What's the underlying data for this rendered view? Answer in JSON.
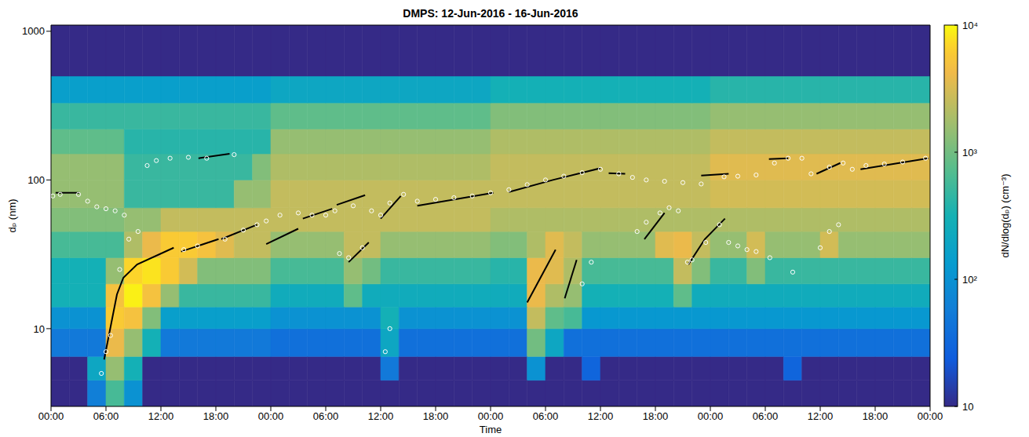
{
  "chart_data": {
    "type": "heatmap",
    "title": "DMPS: 12-Jun-2016 - 16-Jun-2016",
    "x_label": "Time",
    "y_label": "dₚ (nm)",
    "log": "y",
    "xlim": [
      0,
      96
    ],
    "ylim": [
      3,
      1100
    ],
    "xticks": [
      {
        "value": 0,
        "label": "00:00"
      },
      {
        "value": 6,
        "label": "06:00"
      },
      {
        "value": 12,
        "label": "12:00"
      },
      {
        "value": 18,
        "label": "18:00"
      },
      {
        "value": 24,
        "label": "00:00"
      },
      {
        "value": 30,
        "label": "06:00"
      },
      {
        "value": 36,
        "label": "12:00"
      },
      {
        "value": 42,
        "label": "18:00"
      },
      {
        "value": 48,
        "label": "00:00"
      },
      {
        "value": 54,
        "label": "06:00"
      },
      {
        "value": 60,
        "label": "12:00"
      },
      {
        "value": 66,
        "label": "18:00"
      },
      {
        "value": 72,
        "label": "00:00"
      },
      {
        "value": 78,
        "label": "06:00"
      },
      {
        "value": 84,
        "label": "12:00"
      },
      {
        "value": 90,
        "label": "18:00"
      },
      {
        "value": 96,
        "label": "00:00"
      }
    ],
    "yticks": [
      10,
      100,
      1000
    ],
    "x_edges": [
      0,
      2,
      4,
      6,
      8,
      10,
      12,
      14,
      16,
      18,
      20,
      22,
      24,
      26,
      28,
      30,
      32,
      34,
      36,
      38,
      40,
      42,
      44,
      46,
      48,
      50,
      52,
      54,
      56,
      58,
      60,
      62,
      64,
      66,
      68,
      70,
      72,
      74,
      76,
      78,
      80,
      82,
      84,
      86,
      88,
      90,
      92,
      94,
      96
    ],
    "y_edges": [
      3,
      4.5,
      6.5,
      10,
      14,
      20,
      30,
      45,
      65,
      100,
      150,
      220,
      330,
      500,
      1100
    ],
    "cells": [
      [
        10,
        10,
        60,
        600,
        100,
        10,
        10,
        10,
        10,
        10,
        10,
        10,
        10,
        10,
        10,
        10,
        10,
        10,
        10,
        10,
        10,
        10,
        10,
        10,
        10,
        10,
        10,
        10,
        10,
        10,
        10,
        10,
        10,
        10,
        10,
        10,
        10,
        10,
        10,
        10,
        10,
        10,
        10,
        10,
        10,
        10,
        10,
        10
      ],
      [
        10,
        10,
        200,
        1500,
        300,
        10,
        10,
        10,
        10,
        10,
        10,
        10,
        10,
        10,
        10,
        10,
        10,
        10,
        50,
        10,
        10,
        10,
        10,
        10,
        10,
        10,
        100,
        10,
        10,
        30,
        10,
        10,
        10,
        10,
        10,
        10,
        10,
        10,
        10,
        10,
        30,
        10,
        10,
        10,
        10,
        10,
        10,
        10
      ],
      [
        50,
        50,
        50,
        4000,
        1500,
        300,
        50,
        50,
        50,
        50,
        50,
        50,
        40,
        40,
        40,
        40,
        40,
        40,
        200,
        40,
        40,
        40,
        40,
        40,
        40,
        40,
        1000,
        200,
        40,
        40,
        40,
        40,
        40,
        40,
        40,
        40,
        40,
        40,
        40,
        40,
        40,
        40,
        40,
        40,
        40,
        40,
        40,
        40
      ],
      [
        100,
        100,
        100,
        6000,
        5000,
        1200,
        150,
        150,
        150,
        150,
        150,
        150,
        100,
        100,
        100,
        100,
        100,
        100,
        300,
        100,
        100,
        100,
        100,
        100,
        100,
        100,
        2500,
        800,
        600,
        120,
        120,
        120,
        120,
        120,
        120,
        120,
        120,
        120,
        120,
        120,
        120,
        120,
        120,
        120,
        120,
        120,
        120,
        120
      ],
      [
        300,
        300,
        300,
        5000,
        9000,
        5000,
        1500,
        500,
        500,
        500,
        500,
        500,
        250,
        250,
        250,
        250,
        800,
        250,
        250,
        250,
        250,
        250,
        250,
        250,
        250,
        250,
        4000,
        2000,
        1500,
        300,
        300,
        300,
        300,
        300,
        800,
        250,
        250,
        250,
        250,
        250,
        250,
        250,
        250,
        250,
        250,
        250,
        250,
        250
      ],
      [
        300,
        300,
        300,
        1500,
        7000,
        8000,
        6000,
        3000,
        1200,
        1200,
        1200,
        1200,
        600,
        600,
        600,
        600,
        1500,
        1000,
        500,
        500,
        500,
        500,
        500,
        500,
        400,
        400,
        4000,
        3500,
        2000,
        600,
        600,
        600,
        600,
        600,
        2500,
        1200,
        500,
        500,
        1200,
        500,
        500,
        500,
        500,
        500,
        500,
        500,
        500,
        500
      ],
      [
        600,
        600,
        600,
        600,
        2000,
        4000,
        6000,
        6000,
        5000,
        3500,
        2500,
        2500,
        1500,
        1500,
        1500,
        1500,
        2500,
        2500,
        1500,
        1500,
        1500,
        1500,
        1500,
        1500,
        1200,
        1200,
        2000,
        3500,
        2500,
        1500,
        1500,
        1500,
        1500,
        3500,
        4000,
        2500,
        1500,
        1500,
        3000,
        1500,
        1500,
        1500,
        3000,
        1500,
        1500,
        1500,
        1500,
        1500
      ],
      [
        1200,
        1200,
        1200,
        1200,
        1500,
        1500,
        2500,
        2500,
        2500,
        2500,
        2500,
        2500,
        2500,
        2500,
        2500,
        2500,
        2500,
        2500,
        2500,
        2500,
        2500,
        2500,
        2500,
        2500,
        2000,
        2000,
        2000,
        2000,
        2000,
        2000,
        2000,
        2000,
        2000,
        2000,
        2000,
        2000,
        2000,
        2000,
        2000,
        2000,
        2000,
        2000,
        2000,
        2000,
        2000,
        2000,
        2000,
        2000
      ],
      [
        1500,
        1500,
        1500,
        1500,
        500,
        500,
        500,
        500,
        500,
        500,
        1500,
        1500,
        2500,
        2500,
        2500,
        2500,
        2500,
        2500,
        2500,
        2500,
        2500,
        2500,
        2500,
        2500,
        2500,
        2500,
        2500,
        2500,
        2500,
        2500,
        2500,
        2500,
        2500,
        2500,
        2500,
        2500,
        3000,
        3000,
        3000,
        3000,
        3000,
        3000,
        3000,
        3000,
        3000,
        3000,
        3000,
        3000
      ],
      [
        1500,
        1500,
        1500,
        1500,
        500,
        500,
        500,
        500,
        500,
        500,
        500,
        1200,
        2000,
        2000,
        2000,
        2000,
        2000,
        2000,
        2000,
        2000,
        2000,
        2000,
        2000,
        2000,
        2500,
        2500,
        2500,
        2500,
        2500,
        2500,
        2500,
        2500,
        2500,
        2500,
        2500,
        2500,
        3500,
        3500,
        3500,
        3500,
        3500,
        3500,
        3500,
        3500,
        3500,
        3500,
        3500,
        3500
      ],
      [
        800,
        800,
        800,
        800,
        400,
        400,
        400,
        400,
        400,
        400,
        400,
        400,
        1500,
        1500,
        1500,
        1500,
        1500,
        1500,
        1500,
        1500,
        1500,
        1500,
        1500,
        1500,
        2000,
        2000,
        2000,
        2000,
        2000,
        2000,
        2000,
        2000,
        2000,
        2000,
        2000,
        2000,
        2500,
        2500,
        2500,
        2500,
        2500,
        2500,
        2500,
        2500,
        2500,
        2500,
        2500,
        2500
      ],
      [
        500,
        500,
        500,
        500,
        500,
        500,
        500,
        500,
        500,
        500,
        500,
        500,
        800,
        800,
        800,
        800,
        800,
        800,
        800,
        800,
        800,
        800,
        800,
        800,
        1200,
        1200,
        1200,
        1200,
        1200,
        1200,
        1200,
        1200,
        1200,
        1200,
        1200,
        1200,
        1500,
        1500,
        1500,
        1500,
        1500,
        1500,
        1500,
        1500,
        1500,
        1500,
        1500,
        1500
      ],
      [
        150,
        150,
        150,
        150,
        150,
        150,
        150,
        150,
        150,
        150,
        150,
        150,
        200,
        200,
        200,
        200,
        200,
        200,
        200,
        200,
        200,
        200,
        200,
        200,
        300,
        300,
        300,
        300,
        300,
        300,
        300,
        300,
        300,
        300,
        300,
        300,
        400,
        400,
        400,
        400,
        400,
        400,
        400,
        400,
        400,
        400,
        400,
        400
      ],
      [
        10,
        10,
        10,
        10,
        10,
        10,
        10,
        10,
        10,
        10,
        10,
        10,
        10,
        10,
        10,
        10,
        10,
        10,
        10,
        10,
        10,
        10,
        10,
        10,
        10,
        10,
        10,
        10,
        10,
        10,
        10,
        10,
        10,
        10,
        10,
        10,
        10,
        10,
        10,
        10,
        10,
        10,
        10,
        10,
        10,
        10,
        10,
        10
      ]
    ],
    "colorbar_label": "dN/dlog(dₚ) (cm⁻³)",
    "colorbar_lim": [
      10,
      10000
    ],
    "colorbar_ticks": [
      10,
      {
        "value": 100,
        "label": "10²"
      },
      {
        "value": 1000,
        "label": "10³"
      },
      {
        "value": 10000,
        "label": "10⁴"
      }
    ],
    "fits": {
      "type": "line",
      "color": "#000000",
      "line_style": "solid",
      "lines": [
        {
          "x": [
            5.8,
            7.2,
            7.9,
            9.4,
            13.4
          ],
          "y": [
            6.2,
            17,
            22,
            27,
            35
          ]
        },
        {
          "x": [
            0.5,
            3.1
          ],
          "y": [
            82,
            82
          ]
        },
        {
          "x": [
            14.2,
            18.3
          ],
          "y": [
            33,
            40
          ]
        },
        {
          "x": [
            16.1,
            19.5
          ],
          "y": [
            140,
            150
          ]
        },
        {
          "x": [
            18.6,
            22.5
          ],
          "y": [
            40,
            50
          ]
        },
        {
          "x": [
            23.5,
            27
          ],
          "y": [
            37,
            47
          ]
        },
        {
          "x": [
            27.5,
            30.7
          ],
          "y": [
            55,
            64
          ]
        },
        {
          "x": [
            31.2,
            34.3
          ],
          "y": [
            68,
            79
          ]
        },
        {
          "x": [
            32.5,
            34.7
          ],
          "y": [
            28,
            38
          ]
        },
        {
          "x": [
            36,
            38.2
          ],
          "y": [
            55,
            78
          ]
        },
        {
          "x": [
            40,
            48.3
          ],
          "y": [
            67,
            82
          ]
        },
        {
          "x": [
            50,
            54.8,
            60
          ],
          "y": [
            83,
            100,
            120
          ]
        },
        {
          "x": [
            60.9,
            62.7
          ],
          "y": [
            111,
            110
          ]
        },
        {
          "x": [
            52,
            55.1
          ],
          "y": [
            15,
            34
          ]
        },
        {
          "x": [
            56.1,
            57.4
          ],
          "y": [
            16,
            29
          ]
        },
        {
          "x": [
            64.8,
            67
          ],
          "y": [
            40,
            60
          ]
        },
        {
          "x": [
            69.6,
            71.4,
            73.6
          ],
          "y": [
            27,
            40,
            55
          ]
        },
        {
          "x": [
            71,
            74
          ],
          "y": [
            107,
            110
          ]
        },
        {
          "x": [
            78.4,
            80.5
          ],
          "y": [
            138,
            140
          ]
        },
        {
          "x": [
            83.6,
            86.2
          ],
          "y": [
            110,
            130
          ]
        },
        {
          "x": [
            88.4,
            95.8
          ],
          "y": [
            118,
            140
          ]
        }
      ]
    },
    "modes": {
      "type": "scatter",
      "color": "#ffffff",
      "marker": "circle",
      "x": [
        0.2,
        1,
        3,
        4,
        5,
        6,
        7,
        8,
        5.5,
        6,
        6.5,
        7.5,
        8.5,
        9.5,
        10.5,
        11.5,
        13,
        15,
        17,
        20,
        14.5,
        16,
        19,
        21,
        22.5,
        23.5,
        25,
        27,
        28.5,
        30,
        31,
        33,
        35,
        36,
        37,
        38.5,
        40,
        42,
        44,
        46,
        48,
        31.5,
        32.5,
        34,
        36.5,
        37,
        50,
        52,
        54,
        56,
        58,
        60,
        62,
        63.5,
        65,
        67,
        69,
        71,
        58,
        59,
        64,
        65,
        66.5,
        67.5,
        68.5,
        69.5,
        70,
        71.5,
        73,
        73.5,
        75,
        77,
        79,
        80.5,
        82,
        83,
        85,
        86.5,
        87.5,
        89,
        91,
        93,
        95.5,
        74,
        75,
        76,
        77,
        78.5,
        81,
        84,
        85,
        86
      ],
      "y": [
        78,
        80,
        80,
        72,
        66,
        64,
        62,
        58,
        5,
        7,
        9,
        25,
        40,
        45,
        125,
        135,
        140,
        142,
        140,
        148,
        34,
        36,
        40,
        46,
        50,
        53,
        58,
        60,
        58,
        58,
        62,
        67,
        62,
        58,
        70,
        80,
        72,
        74,
        76,
        78,
        82,
        32,
        30,
        35,
        7,
        10,
        86,
        93,
        100,
        106,
        112,
        118,
        110,
        104,
        100,
        98,
        96,
        94,
        20,
        28,
        45,
        52,
        60,
        65,
        62,
        28,
        29,
        38,
        50,
        105,
        106,
        108,
        130,
        140,
        140,
        110,
        122,
        130,
        118,
        125,
        128,
        132,
        140,
        38,
        36,
        34,
        33,
        30,
        24,
        35,
        45,
        50
      ]
    }
  }
}
